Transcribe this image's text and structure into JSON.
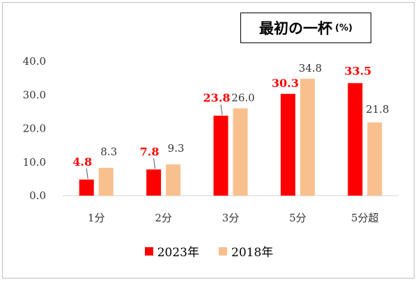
{
  "chart_data": {
    "type": "bar",
    "title": "最初の一杯",
    "unit": "(%)",
    "categories": [
      "1分",
      "2分",
      "3分",
      "5分",
      "5分超"
    ],
    "series": [
      {
        "name": "2023年",
        "values": [
          4.8,
          7.8,
          23.8,
          30.3,
          33.5
        ],
        "color": "#ff0000",
        "label_color": "#ff0000"
      },
      {
        "name": "2018年",
        "values": [
          8.3,
          9.3,
          26.0,
          34.8,
          21.8
        ],
        "color": "#f8c08e",
        "label_color": "#333333"
      }
    ],
    "y_ticks": [
      "0.0",
      "10.0",
      "20.0",
      "30.0",
      "40.0"
    ],
    "ylim": [
      0,
      40
    ],
    "grid": false,
    "legend_position": "bottom"
  }
}
